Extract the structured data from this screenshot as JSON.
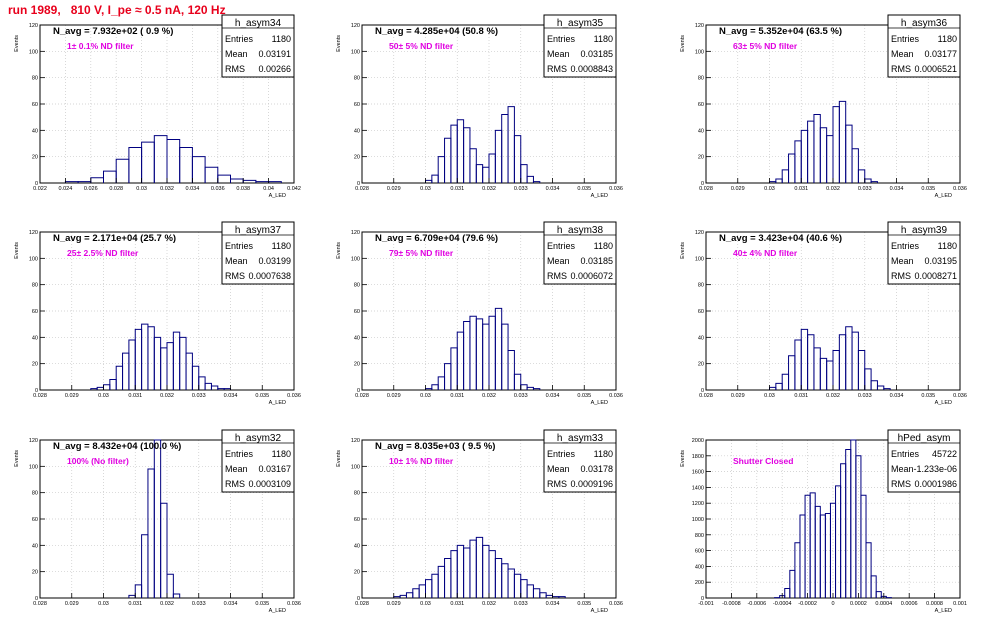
{
  "header": {
    "run_title": "run 1989,   810 V, I_pe ≈ 0.5 nA, 120 Hz"
  },
  "colors": {
    "histogram_line": "#000080",
    "annotation": "#e000e0",
    "header": "#e8001c",
    "grid": "#c8c8c8"
  },
  "chart_data": [
    {
      "type": "histogram",
      "name": "h_asym34",
      "stats": {
        "entries": "1180",
        "mean": "0.03191",
        "rms": "0.00266"
      },
      "title": "N_avg = 7.932e+02 ( 0.9 %)",
      "annotation": "1± 0.1% ND filter",
      "xlabel": "A_LED",
      "ylabel": "Events",
      "xlim": [
        0.022,
        0.042
      ],
      "ylim": [
        0,
        120
      ],
      "xticks": [
        0.022,
        0.024,
        0.026,
        0.028,
        0.03,
        0.032,
        0.034,
        0.036,
        0.038,
        0.04,
        0.042
      ],
      "xtick_labels": [
        "0.022",
        "0.024",
        "0.026",
        "0.028",
        "0.03",
        "0.032",
        "0.034",
        "0.036",
        "0.038",
        "0.04",
        "0.042"
      ],
      "yticks": [
        0,
        20,
        40,
        60,
        80,
        100,
        120
      ],
      "ytick_labels": [
        "0",
        "20",
        "40",
        "60",
        "80",
        "100",
        "120"
      ],
      "x": [
        0.0245,
        0.0255,
        0.0265,
        0.0275,
        0.0285,
        0.0295,
        0.0305,
        0.0315,
        0.0325,
        0.0335,
        0.0345,
        0.0355,
        0.0365,
        0.0375,
        0.0385,
        0.0395,
        0.0405
      ],
      "values": [
        1,
        1,
        4,
        9,
        18,
        27,
        31,
        36,
        33,
        27,
        20,
        12,
        6,
        3,
        2,
        1,
        1
      ]
    },
    {
      "type": "histogram",
      "name": "h_asym35",
      "stats": {
        "entries": "1180",
        "mean": "0.03185",
        "rms": "0.0008843"
      },
      "title": "N_avg = 4.285e+04 (50.8 %)",
      "annotation": "50± 5% ND filter",
      "xlabel": "A_LED",
      "ylabel": "Events",
      "xlim": [
        0.028,
        0.036
      ],
      "ylim": [
        0,
        120
      ],
      "xticks": [
        0.028,
        0.029,
        0.03,
        0.031,
        0.032,
        0.033,
        0.034,
        0.035,
        0.036
      ],
      "xtick_labels": [
        "0.028",
        "0.029",
        "0.03",
        "0.031",
        "0.032",
        "0.033",
        "0.034",
        "0.035",
        "0.036"
      ],
      "yticks": [
        0,
        20,
        40,
        60,
        80,
        100,
        120
      ],
      "ytick_labels": [
        "0",
        "20",
        "40",
        "60",
        "80",
        "100",
        "120"
      ],
      "x": [
        0.0301,
        0.0303,
        0.0305,
        0.0307,
        0.0309,
        0.0311,
        0.0313,
        0.0315,
        0.0317,
        0.0319,
        0.0321,
        0.0323,
        0.0325,
        0.0327,
        0.0329,
        0.0331,
        0.0333,
        0.0335
      ],
      "values": [
        2,
        6,
        20,
        34,
        44,
        48,
        42,
        26,
        14,
        12,
        22,
        40,
        52,
        58,
        36,
        14,
        5,
        1
      ]
    },
    {
      "type": "histogram",
      "name": "h_asym36",
      "stats": {
        "entries": "1180",
        "mean": "0.03177",
        "rms": "0.0006521"
      },
      "title": "N_avg = 5.352e+04 (63.5 %)",
      "annotation": "63± 5% ND filter",
      "xlabel": "A_LED",
      "ylabel": "Events",
      "xlim": [
        0.028,
        0.036
      ],
      "ylim": [
        0,
        120
      ],
      "xticks": [
        0.028,
        0.029,
        0.03,
        0.031,
        0.032,
        0.033,
        0.034,
        0.035,
        0.036
      ],
      "xtick_labels": [
        "0.028",
        "0.029",
        "0.03",
        "0.031",
        "0.032",
        "0.033",
        "0.034",
        "0.035",
        "0.036"
      ],
      "yticks": [
        0,
        20,
        40,
        60,
        80,
        100,
        120
      ],
      "ytick_labels": [
        "0",
        "20",
        "40",
        "60",
        "80",
        "100",
        "120"
      ],
      "x": [
        0.0301,
        0.0303,
        0.0305,
        0.0307,
        0.0309,
        0.0311,
        0.0313,
        0.0315,
        0.0317,
        0.0319,
        0.0321,
        0.0323,
        0.0325,
        0.0327,
        0.0329,
        0.0331,
        0.0333
      ],
      "values": [
        1,
        3,
        10,
        22,
        32,
        40,
        47,
        52,
        42,
        36,
        58,
        62,
        44,
        26,
        10,
        3,
        1
      ]
    },
    {
      "type": "histogram",
      "name": "h_asym37",
      "stats": {
        "entries": "1180",
        "mean": "0.03199",
        "rms": "0.0007638"
      },
      "title": "N_avg = 2.171e+04 (25.7 %)",
      "annotation": "25± 2.5% ND filter",
      "xlabel": "A_LED",
      "ylabel": "Events",
      "xlim": [
        0.028,
        0.036
      ],
      "ylim": [
        0,
        120
      ],
      "xticks": [
        0.028,
        0.029,
        0.03,
        0.031,
        0.032,
        0.033,
        0.034,
        0.035,
        0.036
      ],
      "xtick_labels": [
        "0.028",
        "0.029",
        "0.03",
        "0.031",
        "0.032",
        "0.033",
        "0.034",
        "0.035",
        "0.036"
      ],
      "yticks": [
        0,
        20,
        40,
        60,
        80,
        100,
        120
      ],
      "ytick_labels": [
        "0",
        "20",
        "40",
        "60",
        "80",
        "100",
        "120"
      ],
      "x": [
        0.0297,
        0.0299,
        0.0301,
        0.0303,
        0.0305,
        0.0307,
        0.0309,
        0.0311,
        0.0313,
        0.0315,
        0.0317,
        0.0319,
        0.0321,
        0.0323,
        0.0325,
        0.0327,
        0.0329,
        0.0331,
        0.0333,
        0.0335,
        0.0337,
        0.0339
      ],
      "values": [
        1,
        2,
        4,
        8,
        18,
        28,
        38,
        46,
        50,
        48,
        40,
        32,
        36,
        44,
        40,
        28,
        18,
        10,
        5,
        3,
        1,
        1
      ]
    },
    {
      "type": "histogram",
      "name": "h_asym38",
      "stats": {
        "entries": "1180",
        "mean": "0.03185",
        "rms": "0.0006072"
      },
      "title": "N_avg = 6.709e+04 (79.6 %)",
      "annotation": "79± 5% ND filter",
      "xlabel": "A_LED",
      "ylabel": "Events",
      "xlim": [
        0.028,
        0.036
      ],
      "ylim": [
        0,
        120
      ],
      "xticks": [
        0.028,
        0.029,
        0.03,
        0.031,
        0.032,
        0.033,
        0.034,
        0.035,
        0.036
      ],
      "xtick_labels": [
        "0.028",
        "0.029",
        "0.03",
        "0.031",
        "0.032",
        "0.033",
        "0.034",
        "0.035",
        "0.036"
      ],
      "yticks": [
        0,
        20,
        40,
        60,
        80,
        100,
        120
      ],
      "ytick_labels": [
        "0",
        "20",
        "40",
        "60",
        "80",
        "100",
        "120"
      ],
      "x": [
        0.0301,
        0.0303,
        0.0305,
        0.0307,
        0.0309,
        0.0311,
        0.0313,
        0.0315,
        0.0317,
        0.0319,
        0.0321,
        0.0323,
        0.0325,
        0.0327,
        0.0329,
        0.0331,
        0.0333,
        0.0335
      ],
      "values": [
        1,
        4,
        10,
        20,
        32,
        44,
        52,
        56,
        54,
        50,
        56,
        62,
        50,
        30,
        12,
        4,
        2,
        1
      ]
    },
    {
      "type": "histogram",
      "name": "h_asym39",
      "stats": {
        "entries": "1180",
        "mean": "0.03195",
        "rms": "0.0008271"
      },
      "title": "N_avg = 3.423e+04 (40.6 %)",
      "annotation": "40± 4% ND filter",
      "xlabel": "A_LED",
      "ylabel": "Events",
      "xlim": [
        0.028,
        0.036
      ],
      "ylim": [
        0,
        120
      ],
      "xticks": [
        0.028,
        0.029,
        0.03,
        0.031,
        0.032,
        0.033,
        0.034,
        0.035,
        0.036
      ],
      "xtick_labels": [
        "0.028",
        "0.029",
        "0.03",
        "0.031",
        "0.032",
        "0.033",
        "0.034",
        "0.035",
        "0.036"
      ],
      "yticks": [
        0,
        20,
        40,
        60,
        80,
        100,
        120
      ],
      "ytick_labels": [
        "0",
        "20",
        "40",
        "60",
        "80",
        "100",
        "120"
      ],
      "x": [
        0.0301,
        0.0303,
        0.0305,
        0.0307,
        0.0309,
        0.0311,
        0.0313,
        0.0315,
        0.0317,
        0.0319,
        0.0321,
        0.0323,
        0.0325,
        0.0327,
        0.0329,
        0.0331,
        0.0333,
        0.0335,
        0.0337
      ],
      "values": [
        2,
        5,
        12,
        26,
        38,
        46,
        42,
        32,
        24,
        22,
        30,
        42,
        48,
        44,
        30,
        16,
        7,
        3,
        1
      ]
    },
    {
      "type": "histogram",
      "name": "h_asym32",
      "stats": {
        "entries": "1180",
        "mean": "0.03167",
        "rms": "0.0003109"
      },
      "title": "N_avg = 8.432e+04 (100.0 %)",
      "annotation": "100% (No filter)",
      "xlabel": "A_LED",
      "ylabel": "Events",
      "xlim": [
        0.028,
        0.036
      ],
      "ylim": [
        0,
        120
      ],
      "xticks": [
        0.028,
        0.029,
        0.03,
        0.031,
        0.032,
        0.033,
        0.034,
        0.035,
        0.036
      ],
      "xtick_labels": [
        "0.028",
        "0.029",
        "0.03",
        "0.031",
        "0.032",
        "0.033",
        "0.034",
        "0.035",
        "0.036"
      ],
      "yticks": [
        0,
        20,
        40,
        60,
        80,
        100,
        120
      ],
      "ytick_labels": [
        "0",
        "20",
        "40",
        "60",
        "80",
        "100",
        "120"
      ],
      "x": [
        0.0309,
        0.0311,
        0.0313,
        0.0315,
        0.0317,
        0.0319,
        0.0321,
        0.0323
      ],
      "values": [
        2,
        10,
        48,
        98,
        120,
        72,
        18,
        3
      ]
    },
    {
      "type": "histogram",
      "name": "h_asym33",
      "stats": {
        "entries": "1180",
        "mean": "0.03178",
        "rms": "0.0009196"
      },
      "title": "N_avg = 8.035e+03 ( 9.5 %)",
      "annotation": "10± 1% ND filter",
      "xlabel": "A_LED",
      "ylabel": "Events",
      "xlim": [
        0.028,
        0.036
      ],
      "ylim": [
        0,
        120
      ],
      "xticks": [
        0.028,
        0.029,
        0.03,
        0.031,
        0.032,
        0.033,
        0.034,
        0.035,
        0.036
      ],
      "xtick_labels": [
        "0.028",
        "0.029",
        "0.03",
        "0.031",
        "0.032",
        "0.033",
        "0.034",
        "0.035",
        "0.036"
      ],
      "yticks": [
        0,
        20,
        40,
        60,
        80,
        100,
        120
      ],
      "ytick_labels": [
        "0",
        "20",
        "40",
        "60",
        "80",
        "100",
        "120"
      ],
      "x": [
        0.0291,
        0.0293,
        0.0295,
        0.0297,
        0.0299,
        0.0301,
        0.0303,
        0.0305,
        0.0307,
        0.0309,
        0.0311,
        0.0313,
        0.0315,
        0.0317,
        0.0319,
        0.0321,
        0.0323,
        0.0325,
        0.0327,
        0.0329,
        0.0331,
        0.0333,
        0.0335,
        0.0337,
        0.0339,
        0.0341,
        0.0343
      ],
      "values": [
        1,
        2,
        4,
        7,
        10,
        14,
        18,
        24,
        30,
        36,
        40,
        38,
        44,
        46,
        40,
        36,
        30,
        26,
        22,
        18,
        14,
        10,
        7,
        4,
        2,
        1,
        1
      ]
    },
    {
      "type": "histogram",
      "name": "hPed_asym",
      "stats": {
        "entries": "45722",
        "mean": "-1.233e-06",
        "rms": "0.0001986"
      },
      "title": "",
      "annotation": "Shutter Closed",
      "xlabel": "A_LED",
      "ylabel": "Events",
      "xlim": [
        -0.001,
        0.001
      ],
      "ylim": [
        0,
        2000
      ],
      "xticks": [
        -0.001,
        -0.0008,
        -0.0006,
        -0.0004,
        -0.0002,
        0,
        0.0002,
        0.0004,
        0.0006,
        0.0008,
        0.001
      ],
      "xtick_labels": [
        "-0.001",
        "-0.0008",
        "-0.0006",
        "-0.0004",
        "-0.0002",
        "0",
        "0.0002",
        "0.0004",
        "0.0006",
        "0.0008",
        "0.001"
      ],
      "yticks": [
        0,
        200,
        400,
        600,
        800,
        1000,
        1200,
        1400,
        1600,
        1800,
        2000
      ],
      "ytick_labels": [
        "0",
        "200",
        "400",
        "600",
        "800",
        "1000",
        "1200",
        "1400",
        "1600",
        "1800",
        "2000"
      ],
      "x": [
        -0.00044,
        -0.0004,
        -0.00036,
        -0.00032,
        -0.00028,
        -0.00024,
        -0.0002,
        -0.00016,
        -0.00012,
        -8e-05,
        -4e-05,
        0,
        4e-05,
        8e-05,
        0.00012,
        0.00016,
        0.0002,
        0.00024,
        0.00028,
        0.00032,
        0.00036,
        0.0004,
        0.00044
      ],
      "values": [
        5,
        30,
        120,
        350,
        700,
        1050,
        1300,
        1330,
        1160,
        1050,
        1070,
        1200,
        1420,
        1700,
        1880,
        2000,
        1800,
        1300,
        700,
        280,
        80,
        20,
        5
      ]
    }
  ]
}
